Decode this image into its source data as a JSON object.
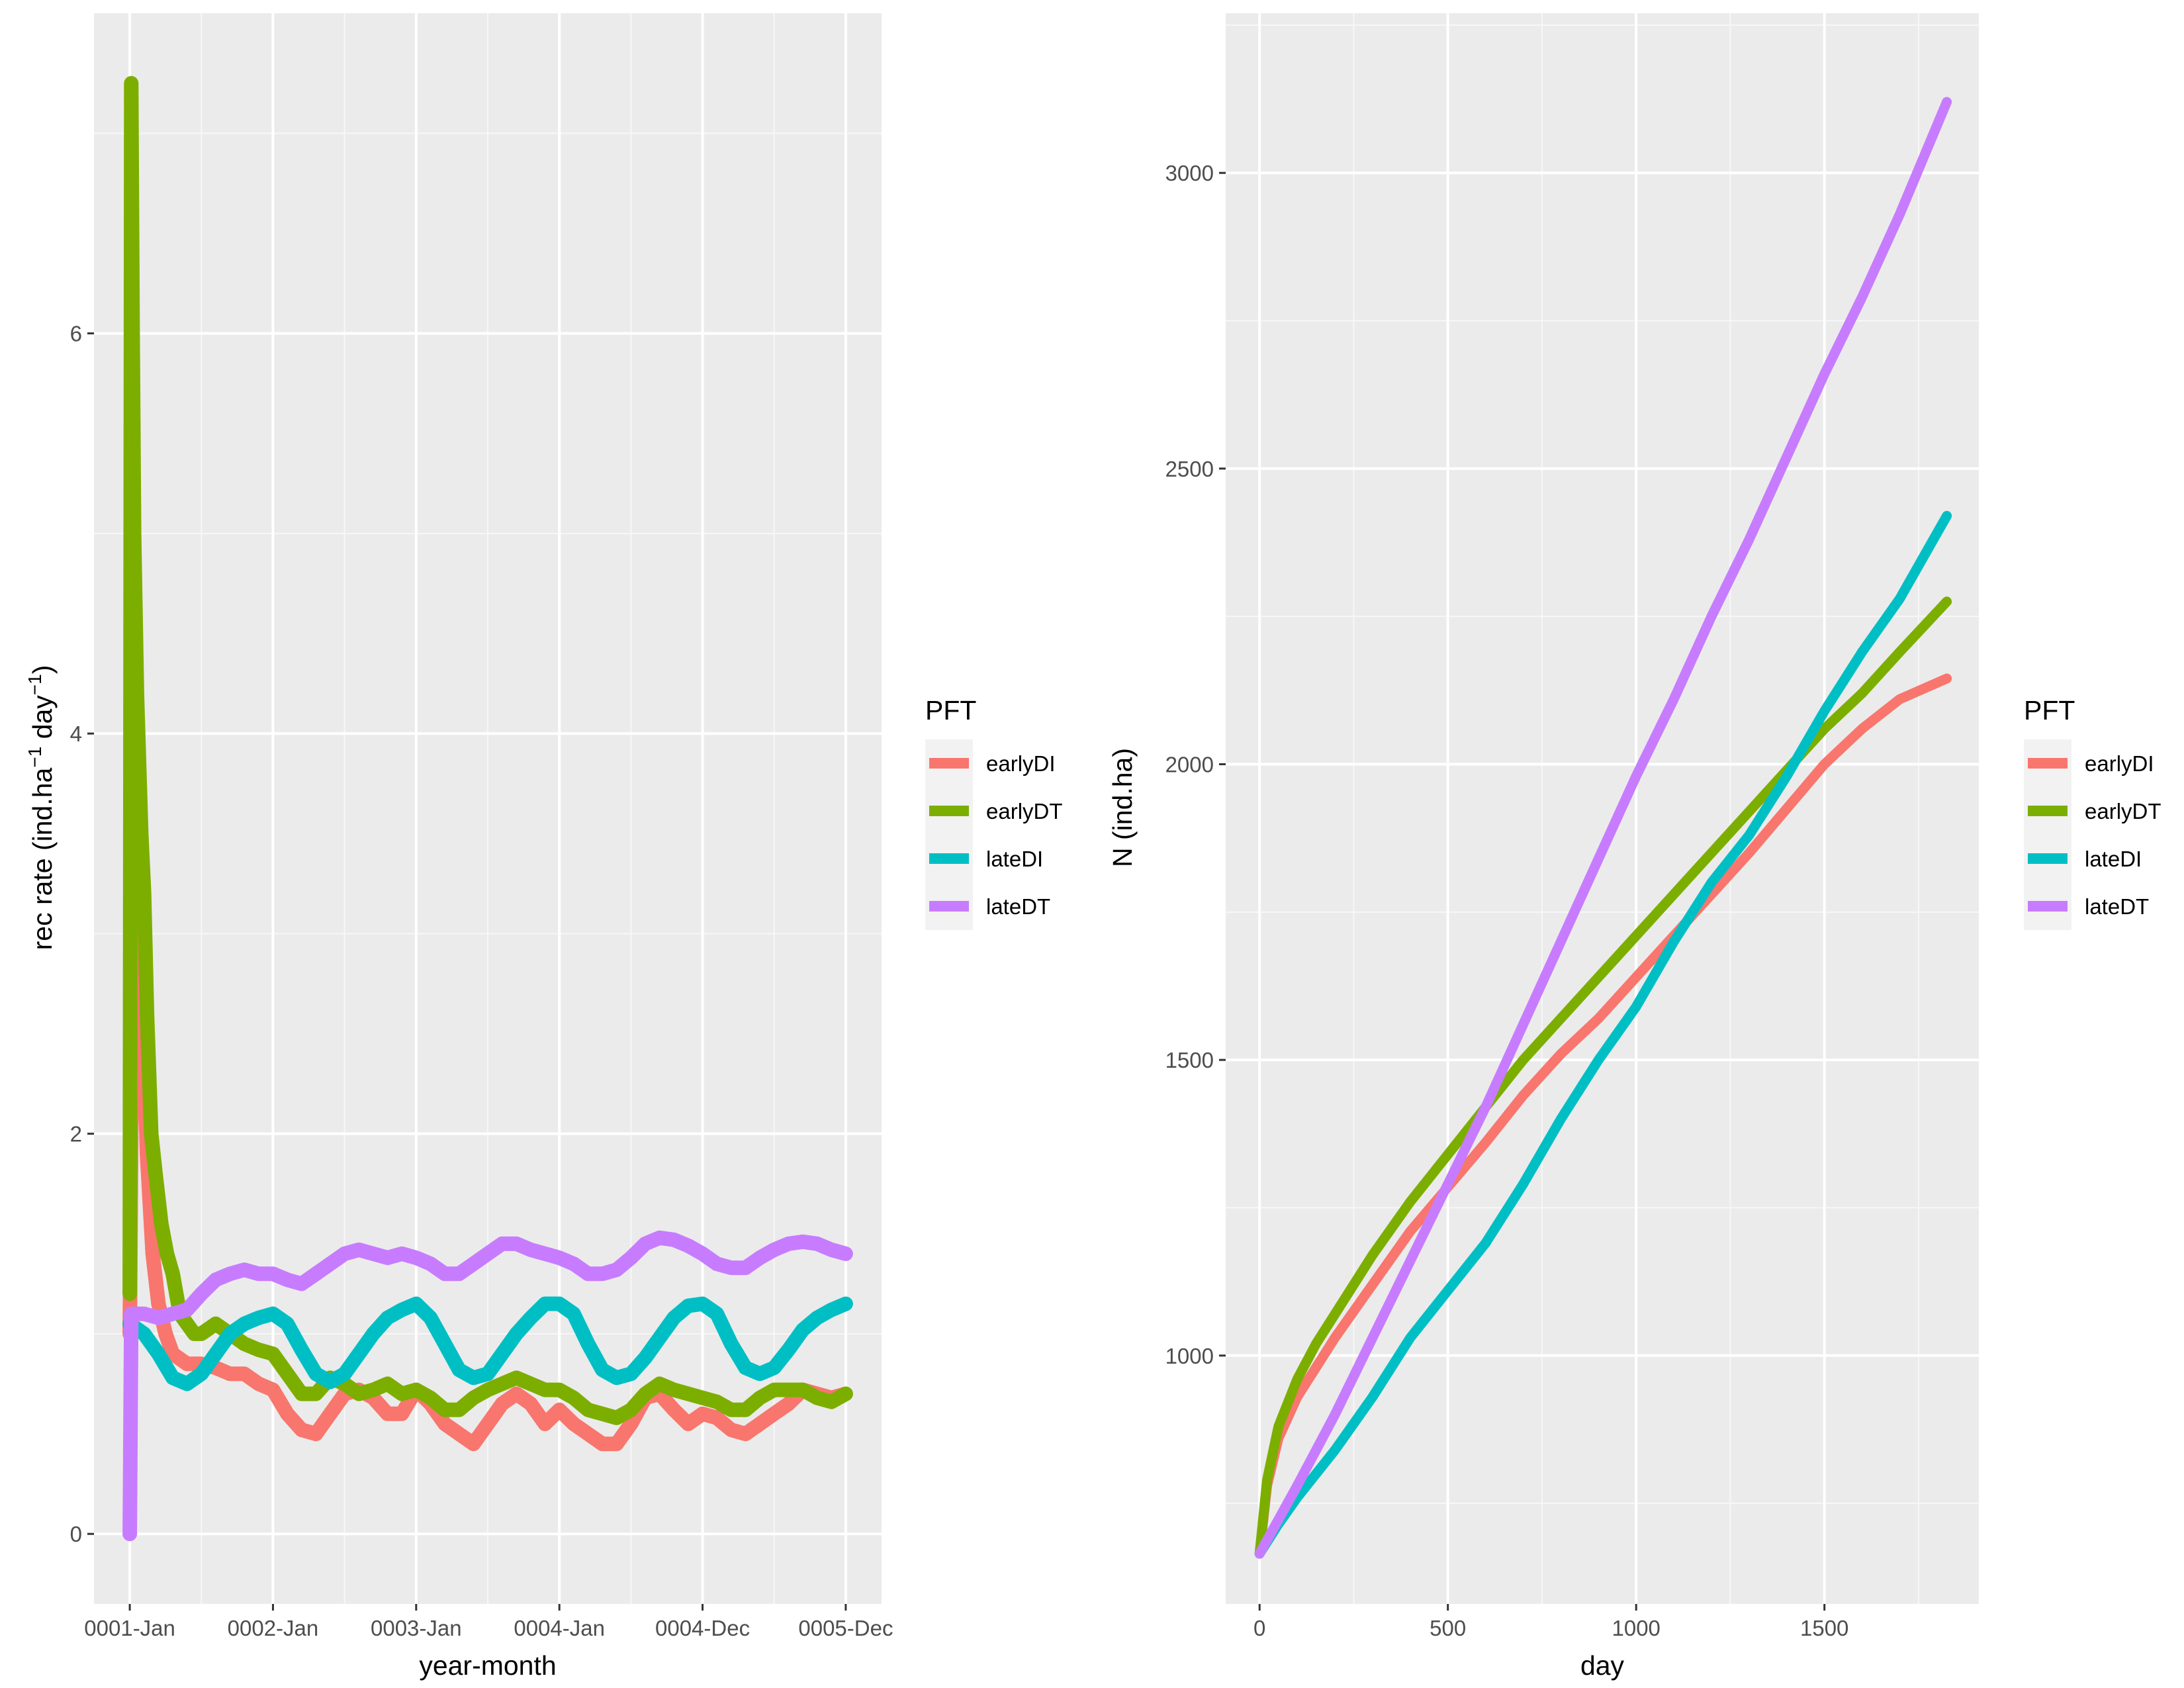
{
  "chart_data": [
    {
      "type": "line",
      "xlabel": "year-month",
      "ylabel": "rec rate (ind.ha",
      "ylabel_sup1": "−1",
      "ylabel_mid": " day",
      "ylabel_sup2": "−1",
      "ylabel_end": ")",
      "xlim": [
        -0.25,
        5.25
      ],
      "ylim": [
        -0.35,
        7.6
      ],
      "grid": true,
      "x_ticks": [
        {
          "value": 0,
          "label": "0001-Jan"
        },
        {
          "value": 1,
          "label": "0002-Jan"
        },
        {
          "value": 2,
          "label": "0003-Jan"
        },
        {
          "value": 3,
          "label": "0004-Jan"
        },
        {
          "value": 4,
          "label": "0004-Dec"
        },
        {
          "value": 5,
          "label": "0005-Dec"
        }
      ],
      "y_ticks": [
        0,
        2,
        4,
        6
      ],
      "legend": {
        "title": "PFT",
        "position": "right"
      },
      "series": [
        {
          "name": "earlyDI",
          "color": "#F8766D",
          "x": [
            0.0,
            0.03,
            0.06,
            0.09,
            0.12,
            0.16,
            0.2,
            0.25,
            0.3,
            0.4,
            0.5,
            0.6,
            0.7,
            0.8,
            0.9,
            1.0,
            1.1,
            1.2,
            1.3,
            1.4,
            1.5,
            1.6,
            1.7,
            1.8,
            1.9,
            2.0,
            2.1,
            2.2,
            2.3,
            2.4,
            2.5,
            2.6,
            2.7,
            2.8,
            2.9,
            3.0,
            3.1,
            3.2,
            3.3,
            3.4,
            3.5,
            3.6,
            3.7,
            3.8,
            3.9,
            4.0,
            4.1,
            4.2,
            4.3,
            4.4,
            4.5,
            4.6,
            4.7,
            4.8,
            4.9,
            5.0
          ],
          "y": [
            1.0,
            4.0,
            3.7,
            2.6,
            1.9,
            1.4,
            1.15,
            1.0,
            0.9,
            0.85,
            0.85,
            0.83,
            0.8,
            0.8,
            0.75,
            0.72,
            0.6,
            0.52,
            0.5,
            0.6,
            0.7,
            0.72,
            0.68,
            0.6,
            0.6,
            0.72,
            0.65,
            0.55,
            0.5,
            0.45,
            0.55,
            0.65,
            0.7,
            0.65,
            0.55,
            0.62,
            0.55,
            0.5,
            0.45,
            0.45,
            0.55,
            0.68,
            0.7,
            0.62,
            0.55,
            0.6,
            0.58,
            0.52,
            0.5,
            0.55,
            0.6,
            0.65,
            0.72,
            0.7,
            0.68,
            0.7
          ]
        },
        {
          "name": "earlyDT",
          "color": "#7CAE00",
          "x": [
            0.0,
            0.01,
            0.02,
            0.03,
            0.05,
            0.08,
            0.1,
            0.12,
            0.15,
            0.18,
            0.22,
            0.26,
            0.3,
            0.35,
            0.4,
            0.45,
            0.5,
            0.6,
            0.7,
            0.8,
            0.9,
            1.0,
            1.1,
            1.2,
            1.3,
            1.4,
            1.5,
            1.6,
            1.7,
            1.8,
            1.9,
            2.0,
            2.1,
            2.2,
            2.3,
            2.4,
            2.5,
            2.6,
            2.7,
            2.8,
            2.9,
            3.0,
            3.1,
            3.2,
            3.3,
            3.4,
            3.5,
            3.6,
            3.7,
            3.8,
            3.9,
            4.0,
            4.1,
            4.2,
            4.3,
            4.4,
            4.5,
            4.6,
            4.7,
            4.8,
            4.9,
            5.0
          ],
          "y": [
            1.2,
            7.25,
            6.0,
            5.0,
            4.2,
            3.5,
            3.2,
            2.6,
            2.0,
            1.8,
            1.55,
            1.4,
            1.3,
            1.1,
            1.05,
            1.0,
            1.0,
            1.05,
            1.0,
            0.95,
            0.92,
            0.9,
            0.8,
            0.7,
            0.7,
            0.78,
            0.75,
            0.7,
            0.72,
            0.75,
            0.7,
            0.72,
            0.68,
            0.62,
            0.62,
            0.68,
            0.72,
            0.75,
            0.78,
            0.75,
            0.72,
            0.72,
            0.68,
            0.62,
            0.6,
            0.58,
            0.62,
            0.7,
            0.75,
            0.72,
            0.7,
            0.68,
            0.66,
            0.62,
            0.62,
            0.68,
            0.72,
            0.72,
            0.72,
            0.68,
            0.66,
            0.7
          ]
        },
        {
          "name": "lateDI",
          "color": "#00BFC4",
          "x": [
            0.0,
            0.1,
            0.2,
            0.3,
            0.4,
            0.5,
            0.6,
            0.7,
            0.8,
            0.9,
            1.0,
            1.1,
            1.2,
            1.3,
            1.4,
            1.5,
            1.6,
            1.7,
            1.8,
            1.9,
            2.0,
            2.1,
            2.2,
            2.3,
            2.4,
            2.5,
            2.6,
            2.7,
            2.8,
            2.9,
            3.0,
            3.1,
            3.2,
            3.3,
            3.4,
            3.5,
            3.6,
            3.7,
            3.8,
            3.9,
            4.0,
            4.1,
            4.2,
            4.3,
            4.4,
            4.5,
            4.6,
            4.7,
            4.8,
            4.9,
            5.0
          ],
          "y": [
            1.05,
            1.0,
            0.9,
            0.78,
            0.75,
            0.8,
            0.9,
            1.0,
            1.05,
            1.08,
            1.1,
            1.05,
            0.92,
            0.8,
            0.76,
            0.8,
            0.9,
            1.0,
            1.08,
            1.12,
            1.15,
            1.08,
            0.95,
            0.82,
            0.78,
            0.8,
            0.9,
            1.0,
            1.08,
            1.15,
            1.15,
            1.1,
            0.95,
            0.82,
            0.78,
            0.8,
            0.88,
            0.98,
            1.08,
            1.14,
            1.15,
            1.1,
            0.95,
            0.83,
            0.8,
            0.83,
            0.92,
            1.02,
            1.08,
            1.12,
            1.15
          ]
        },
        {
          "name": "lateDT",
          "color": "#C77CFF",
          "x": [
            0.0,
            0.01,
            0.1,
            0.2,
            0.3,
            0.4,
            0.5,
            0.6,
            0.7,
            0.8,
            0.9,
            1.0,
            1.1,
            1.2,
            1.3,
            1.4,
            1.5,
            1.6,
            1.7,
            1.8,
            1.9,
            2.0,
            2.1,
            2.2,
            2.3,
            2.4,
            2.5,
            2.6,
            2.7,
            2.8,
            2.9,
            3.0,
            3.1,
            3.2,
            3.3,
            3.4,
            3.5,
            3.6,
            3.7,
            3.8,
            3.9,
            4.0,
            4.1,
            4.2,
            4.3,
            4.4,
            4.5,
            4.6,
            4.7,
            4.8,
            4.9,
            5.0
          ],
          "y": [
            0.0,
            1.1,
            1.1,
            1.08,
            1.1,
            1.12,
            1.2,
            1.27,
            1.3,
            1.32,
            1.3,
            1.3,
            1.27,
            1.25,
            1.3,
            1.35,
            1.4,
            1.42,
            1.4,
            1.38,
            1.4,
            1.38,
            1.35,
            1.3,
            1.3,
            1.35,
            1.4,
            1.45,
            1.45,
            1.42,
            1.4,
            1.38,
            1.35,
            1.3,
            1.3,
            1.32,
            1.38,
            1.45,
            1.48,
            1.47,
            1.44,
            1.4,
            1.35,
            1.33,
            1.33,
            1.38,
            1.42,
            1.45,
            1.46,
            1.45,
            1.42,
            1.4
          ]
        }
      ]
    },
    {
      "type": "line",
      "xlabel": "day",
      "ylabel": "N (ind.ha)",
      "xlim": [
        -90,
        1910
      ],
      "ylim": [
        580,
        3270
      ],
      "grid": true,
      "x_ticks": [
        0,
        500,
        1000,
        1500
      ],
      "y_ticks": [
        1000,
        1500,
        2000,
        2500,
        3000
      ],
      "legend": {
        "title": "PFT",
        "position": "right"
      },
      "series": [
        {
          "name": "earlyDI",
          "color": "#F8766D",
          "x": [
            0,
            20,
            50,
            100,
            150,
            200,
            300,
            400,
            500,
            600,
            700,
            800,
            900,
            1000,
            1100,
            1200,
            1300,
            1400,
            1500,
            1600,
            1700,
            1825
          ],
          "y": [
            665,
            780,
            860,
            930,
            980,
            1030,
            1120,
            1210,
            1285,
            1360,
            1440,
            1510,
            1570,
            1640,
            1710,
            1780,
            1850,
            1925,
            2000,
            2060,
            2110,
            2145
          ]
        },
        {
          "name": "earlyDT",
          "color": "#7CAE00",
          "x": [
            0,
            20,
            50,
            100,
            150,
            200,
            300,
            400,
            500,
            600,
            700,
            800,
            900,
            1000,
            1100,
            1200,
            1300,
            1400,
            1500,
            1600,
            1700,
            1825
          ],
          "y": [
            665,
            790,
            880,
            960,
            1020,
            1070,
            1170,
            1260,
            1340,
            1420,
            1500,
            1570,
            1640,
            1710,
            1780,
            1850,
            1920,
            1990,
            2060,
            2120,
            2190,
            2275
          ]
        },
        {
          "name": "lateDI",
          "color": "#00BFC4",
          "x": [
            0,
            50,
            100,
            200,
            300,
            400,
            500,
            600,
            700,
            800,
            900,
            1000,
            1100,
            1200,
            1300,
            1400,
            1500,
            1600,
            1700,
            1825
          ],
          "y": [
            665,
            715,
            760,
            840,
            930,
            1030,
            1110,
            1190,
            1290,
            1400,
            1500,
            1590,
            1700,
            1800,
            1880,
            1980,
            2090,
            2190,
            2280,
            2420
          ]
        },
        {
          "name": "lateDT",
          "color": "#C77CFF",
          "x": [
            0,
            100,
            200,
            300,
            400,
            500,
            600,
            700,
            800,
            900,
            1000,
            1100,
            1200,
            1300,
            1400,
            1500,
            1600,
            1700,
            1825
          ],
          "y": [
            665,
            780,
            900,
            1030,
            1160,
            1290,
            1420,
            1560,
            1700,
            1840,
            1980,
            2110,
            2250,
            2380,
            2520,
            2660,
            2790,
            2930,
            3120
          ]
        }
      ]
    }
  ]
}
